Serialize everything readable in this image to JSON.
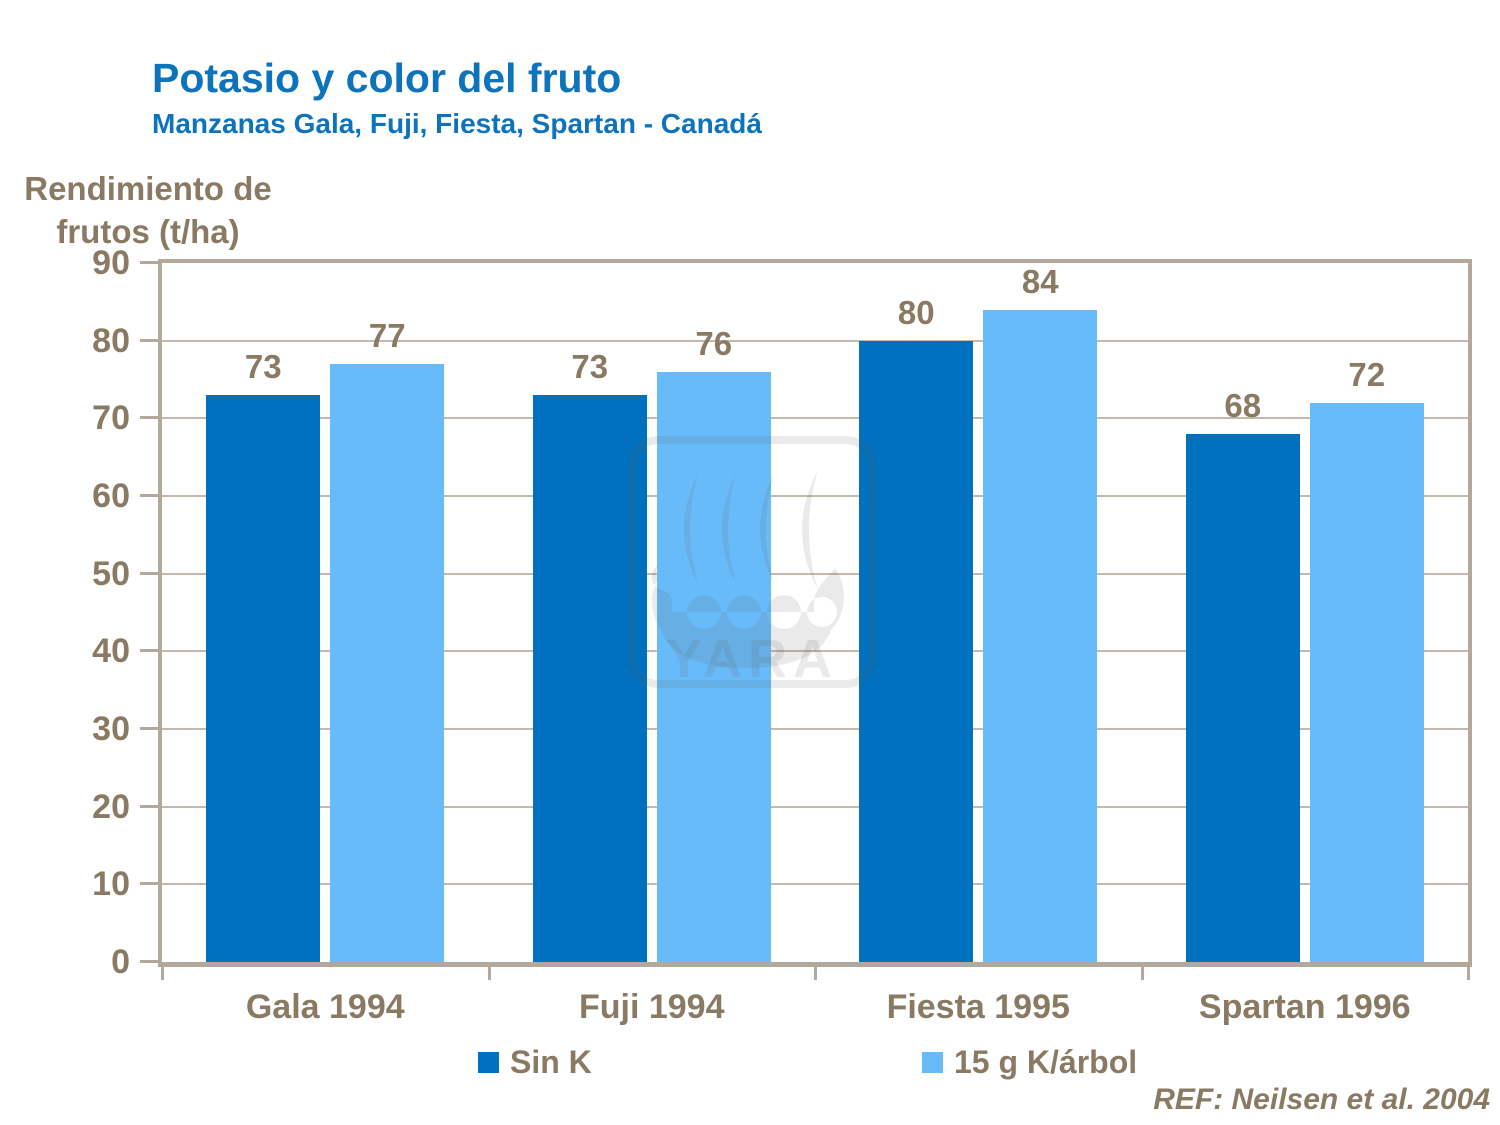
{
  "title": "Potasio y color del fruto",
  "subtitle": "Manzanas Gala, Fuji, Fiesta, Spartan - Canadá",
  "y_axis_title": "Rendimiento de\nfrutos (t/ha)",
  "reference": "REF: Neilsen et al. 2004",
  "watermark_text": "YARA",
  "colors": {
    "title_blue": "#0d74bc",
    "text_brown": "#8a7a63",
    "axis_taupe": "#b3a89c",
    "gridline": "#c3b9ac",
    "series_dark_blue": "#0071be",
    "series_light_blue": "#68bbf9",
    "watermark_grey": "rgba(90,90,90,0.13)"
  },
  "chart_data": {
    "type": "bar",
    "categories": [
      "Gala 1994",
      "Fuji 1994",
      "Fiesta 1995",
      "Spartan 1996"
    ],
    "series": [
      {
        "name": "Sin K",
        "color": "#0071be",
        "values": [
          73,
          73,
          80,
          68
        ]
      },
      {
        "name": "15 g K/árbol",
        "color": "#68bbf9",
        "values": [
          77,
          76,
          84,
          72
        ]
      }
    ],
    "title": "Potasio y color del fruto",
    "subtitle": "Manzanas Gala, Fuji, Fiesta, Spartan - Canadá",
    "xlabel": "",
    "ylabel": "Rendimiento de frutos (t/ha)",
    "ylim": [
      0,
      90
    ],
    "ytick_step": 10,
    "grid": true,
    "data_labels": true,
    "legend_position": "bottom"
  }
}
